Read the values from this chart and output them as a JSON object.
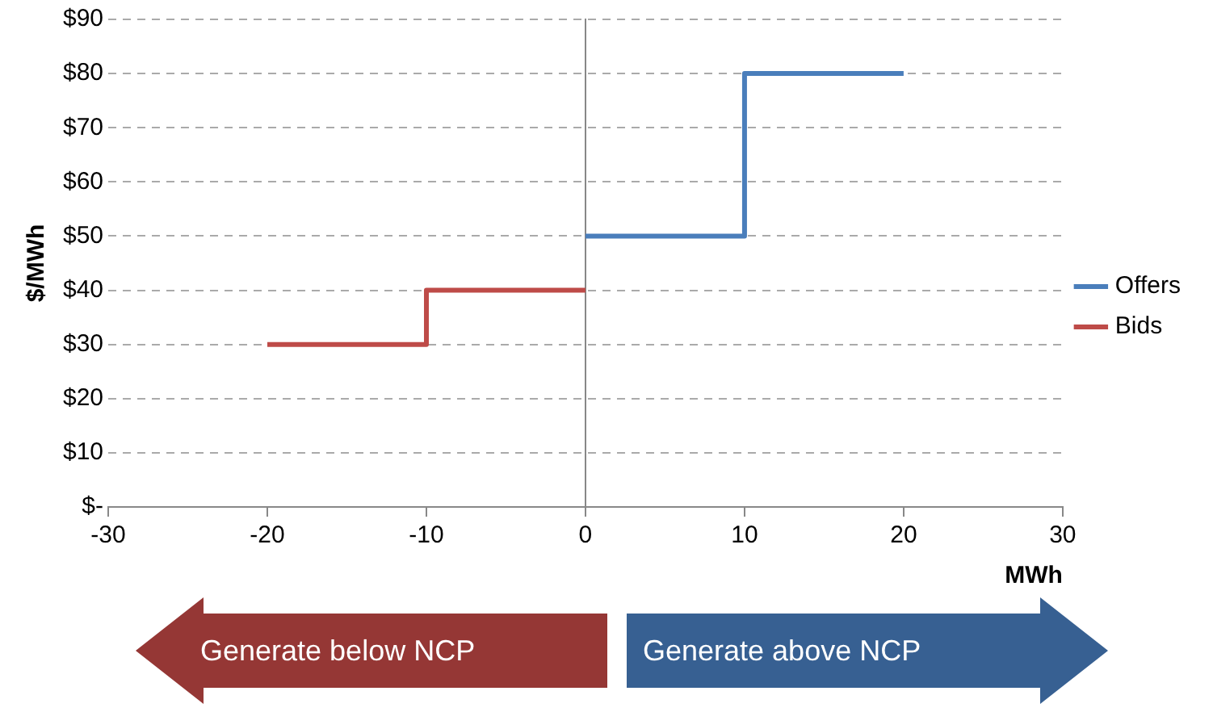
{
  "chart_data": {
    "type": "line",
    "xlabel": "MWh",
    "ylabel": "$/MWh",
    "xlim": [
      -30,
      30
    ],
    "xticks": [
      -30,
      -20,
      -10,
      0,
      10,
      20,
      30
    ],
    "ylim": [
      0,
      90
    ],
    "yticks": [
      {
        "value": 0,
        "label": "$-"
      },
      {
        "value": 10,
        "label": "$10"
      },
      {
        "value": 20,
        "label": "$20"
      },
      {
        "value": 30,
        "label": "$30"
      },
      {
        "value": 40,
        "label": "$40"
      },
      {
        "value": 50,
        "label": "$50"
      },
      {
        "value": 60,
        "label": "$60"
      },
      {
        "value": 70,
        "label": "$70"
      },
      {
        "value": 80,
        "label": "$80"
      },
      {
        "value": 90,
        "label": "$90"
      }
    ],
    "grid": "y",
    "legend": "right",
    "marker": "none",
    "series": [
      {
        "name": "Offers",
        "color": "#4a7ebb",
        "x": [
          0,
          10,
          10,
          20
        ],
        "values": [
          50,
          50,
          80,
          80
        ]
      },
      {
        "name": "Bids",
        "color": "#be4b48",
        "x": [
          -20,
          -10,
          -10,
          0
        ],
        "values": [
          30,
          30,
          40,
          40
        ]
      }
    ],
    "annotations": [
      "Generate below NCP",
      "Generate above NCP"
    ]
  }
}
